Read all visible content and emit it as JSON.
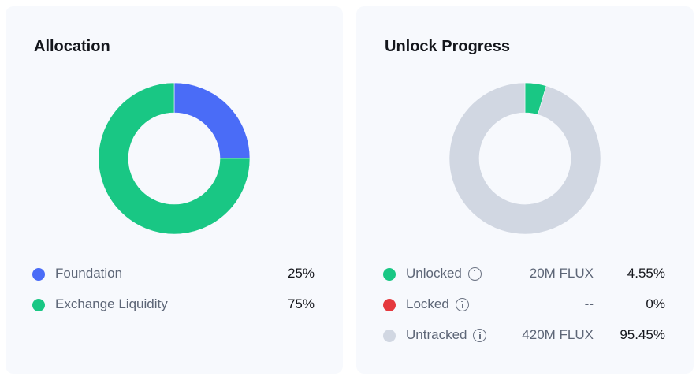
{
  "allocation": {
    "title": "Allocation",
    "legend": [
      {
        "label": "Foundation",
        "percent": "25%",
        "color": "#4a6cf7"
      },
      {
        "label": "Exchange Liquidity",
        "percent": "75%",
        "color": "#19c784"
      }
    ]
  },
  "unlock": {
    "title": "Unlock Progress",
    "legend": [
      {
        "label": "Unlocked",
        "amount": "20M FLUX",
        "percent": "4.55%",
        "color": "#19c784",
        "icon": "info-icon"
      },
      {
        "label": "Locked",
        "amount": "--",
        "percent": "0%",
        "color": "#e5393e",
        "icon": "info-icon"
      },
      {
        "label": "Untracked",
        "amount": "420M FLUX",
        "percent": "95.45%",
        "color": "#d1d7e2",
        "icon": "info-icon"
      }
    ]
  },
  "chart_data": [
    {
      "type": "pie",
      "title": "Allocation",
      "categories": [
        "Foundation",
        "Exchange Liquidity"
      ],
      "values": [
        25,
        75
      ],
      "colors": [
        "#4a6cf7",
        "#19c784"
      ]
    },
    {
      "type": "pie",
      "title": "Unlock Progress",
      "categories": [
        "Unlocked",
        "Locked",
        "Untracked"
      ],
      "values": [
        4.55,
        0,
        95.45
      ],
      "colors": [
        "#19c784",
        "#e5393e",
        "#d1d7e2"
      ]
    }
  ]
}
